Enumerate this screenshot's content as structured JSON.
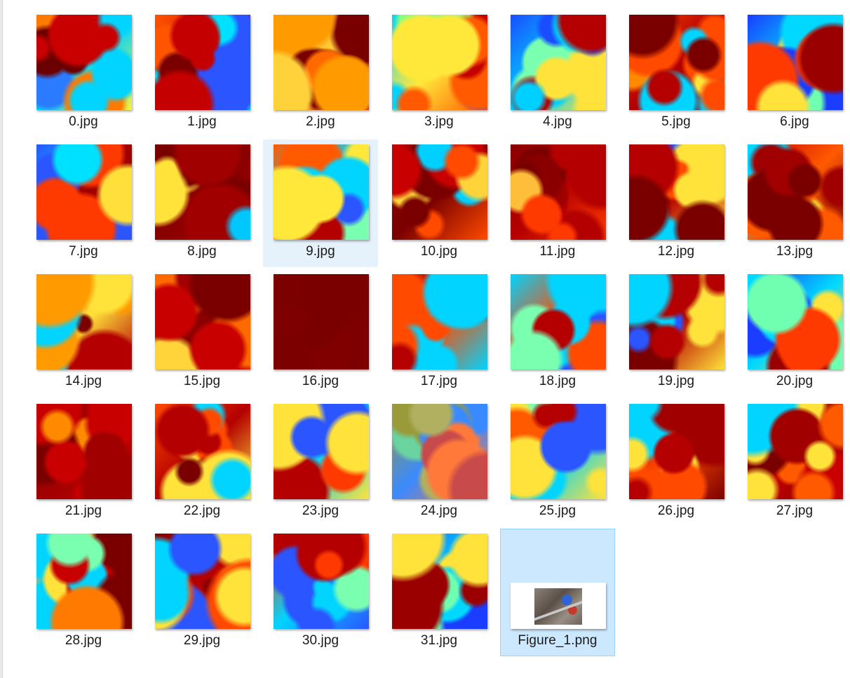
{
  "window": {
    "view": "large-icons"
  },
  "files": [
    {
      "name": "0.jpg",
      "type": "image-jpg",
      "palette": [
        "#2a7bff",
        "#00d4ff",
        "#f9f13a",
        "#ff7a00",
        "#c80000",
        "#6b0000"
      ]
    },
    {
      "name": "1.jpg",
      "type": "image-jpg",
      "palette": [
        "#ff5500",
        "#c40000",
        "#00e0ff",
        "#ffe23a",
        "#2a55ff",
        "#7a0000"
      ]
    },
    {
      "name": "2.jpg",
      "type": "image-jpg",
      "palette": [
        "#ff6a00",
        "#ffd13a",
        "#c80000",
        "#7a0000",
        "#ff9a00",
        "#e00000"
      ]
    },
    {
      "name": "3.jpg",
      "type": "image-jpg",
      "palette": [
        "#00d4ff",
        "#ffe83a",
        "#ff5a00",
        "#2a55ff",
        "#c40000",
        "#8cff7a"
      ]
    },
    {
      "name": "4.jpg",
      "type": "image-jpg",
      "palette": [
        "#1a4dff",
        "#00d0ff",
        "#ffe23a",
        "#ff4a00",
        "#b40000",
        "#7affb0"
      ]
    },
    {
      "name": "5.jpg",
      "type": "image-jpg",
      "palette": [
        "#ff4a00",
        "#b40000",
        "#7a0000",
        "#ffe23a",
        "#00d4ff",
        "#ff8a00"
      ]
    },
    {
      "name": "6.jpg",
      "type": "image-jpg",
      "palette": [
        "#1a3dff",
        "#00d8ff",
        "#ffe23a",
        "#ff3a00",
        "#9a0000",
        "#70ffb0"
      ]
    },
    {
      "name": "7.jpg",
      "type": "image-jpg",
      "palette": [
        "#2a55ff",
        "#00e0ff",
        "#ffe03a",
        "#ff3a00",
        "#a00000",
        "#ff9a00"
      ]
    },
    {
      "name": "8.jpg",
      "type": "image-jpg",
      "palette": [
        "#7a0000",
        "#8a0000",
        "#a00000",
        "#ffe23a",
        "#00c8ff",
        "#7a0000"
      ]
    },
    {
      "name": "9.jpg",
      "type": "image-jpg",
      "palette": [
        "#ff5a00",
        "#00d4ff",
        "#ffe83a",
        "#b40000",
        "#2a55ff",
        "#7affb0"
      ]
    },
    {
      "name": "10.jpg",
      "type": "image-jpg",
      "palette": [
        "#a00000",
        "#7a0000",
        "#ff4a00",
        "#ffd43a",
        "#00d0ff",
        "#c80000"
      ]
    },
    {
      "name": "11.jpg",
      "type": "image-jpg",
      "palette": [
        "#8a0000",
        "#b40000",
        "#ff3a00",
        "#7a0000",
        "#ffbe3a",
        "#a00000"
      ]
    },
    {
      "name": "12.jpg",
      "type": "image-jpg",
      "palette": [
        "#ff4a00",
        "#b40000",
        "#ffe23a",
        "#00d4ff",
        "#2a55ff",
        "#7a0000"
      ]
    },
    {
      "name": "13.jpg",
      "type": "image-jpg",
      "palette": [
        "#c80000",
        "#ff5a00",
        "#7a0000",
        "#ffe23a",
        "#00d4ff",
        "#a00000"
      ]
    },
    {
      "name": "14.jpg",
      "type": "image-jpg",
      "palette": [
        "#ff5a00",
        "#ffe23a",
        "#b40000",
        "#00d4ff",
        "#7a0000",
        "#ff9a00"
      ]
    },
    {
      "name": "15.jpg",
      "type": "image-jpg",
      "palette": [
        "#8a0000",
        "#a00000",
        "#c80000",
        "#ff6a00",
        "#ffd43a",
        "#7a0000"
      ]
    },
    {
      "name": "16.jpg",
      "type": "image-jpg",
      "palette": [
        "#7a0000",
        "#7d0000",
        "#800000",
        "#7a0000",
        "#7c0000",
        "#7e0000"
      ]
    },
    {
      "name": "17.jpg",
      "type": "image-jpg",
      "palette": [
        "#b40000",
        "#ff4a00",
        "#00d4ff",
        "#ffe23a",
        "#2a55ff",
        "#7a0000"
      ]
    },
    {
      "name": "18.jpg",
      "type": "image-jpg",
      "palette": [
        "#00d4ff",
        "#ff4a00",
        "#ffe23a",
        "#b40000",
        "#2a55ff",
        "#7affb0"
      ]
    },
    {
      "name": "19.jpg",
      "type": "image-jpg",
      "palette": [
        "#ff5a00",
        "#b40000",
        "#ffe23a",
        "#00d4ff",
        "#2a55ff",
        "#7a0000"
      ]
    },
    {
      "name": "20.jpg",
      "type": "image-jpg",
      "palette": [
        "#1a3dff",
        "#00d8ff",
        "#ffe23a",
        "#ff3a00",
        "#9a0000",
        "#70ffb0"
      ]
    },
    {
      "name": "21.jpg",
      "type": "image-jpg",
      "palette": [
        "#8a0000",
        "#a00000",
        "#c80000",
        "#ff8a00",
        "#ffe23a",
        "#7a0000"
      ]
    },
    {
      "name": "22.jpg",
      "type": "image-jpg",
      "palette": [
        "#ff4a00",
        "#b40000",
        "#ffe23a",
        "#00d4ff",
        "#2a55ff",
        "#7a0000"
      ]
    },
    {
      "name": "23.jpg",
      "type": "image-jpg",
      "palette": [
        "#ff3a00",
        "#00d4ff",
        "#ffe23a",
        "#2a55ff",
        "#b40000",
        "#7affb0"
      ]
    },
    {
      "name": "24.jpg",
      "type": "image-jpg",
      "palette": [
        "#9a9a3a",
        "#3a8aff",
        "#ff7a3a",
        "#6ad4a0",
        "#c84a4a",
        "#b0b060"
      ]
    },
    {
      "name": "25.jpg",
      "type": "image-jpg",
      "palette": [
        "#ff5a00",
        "#00d4ff",
        "#ffe23a",
        "#b40000",
        "#2a55ff",
        "#7affb0"
      ]
    },
    {
      "name": "26.jpg",
      "type": "image-jpg",
      "palette": [
        "#b40000",
        "#ff4a00",
        "#7a0000",
        "#ffe23a",
        "#00d4ff",
        "#a00000"
      ]
    },
    {
      "name": "27.jpg",
      "type": "image-jpg",
      "palette": [
        "#a00000",
        "#c80000",
        "#7a0000",
        "#ff5a00",
        "#ffe23a",
        "#00d4ff"
      ]
    },
    {
      "name": "28.jpg",
      "type": "image-jpg",
      "palette": [
        "#ff7a00",
        "#ffe23a",
        "#00d4ff",
        "#c80000",
        "#7affb0",
        "#7a0000"
      ]
    },
    {
      "name": "29.jpg",
      "type": "image-jpg",
      "palette": [
        "#8a0000",
        "#b40000",
        "#ff4a00",
        "#00d4ff",
        "#ffe23a",
        "#2a55ff"
      ]
    },
    {
      "name": "30.jpg",
      "type": "image-jpg",
      "palette": [
        "#ff3a00",
        "#00d4ff",
        "#2a55ff",
        "#ffe23a",
        "#b40000",
        "#7affb0"
      ]
    },
    {
      "name": "31.jpg",
      "type": "image-jpg",
      "palette": [
        "#1a3dff",
        "#00d8ff",
        "#ff3a00",
        "#ffe23a",
        "#9a0000",
        "#70ffb0"
      ]
    },
    {
      "name": "Figure_1.png",
      "type": "image-png",
      "palette": [
        "#ffffff"
      ]
    }
  ],
  "state": {
    "hovered": "9.jpg",
    "selected": "Figure_1.png"
  }
}
